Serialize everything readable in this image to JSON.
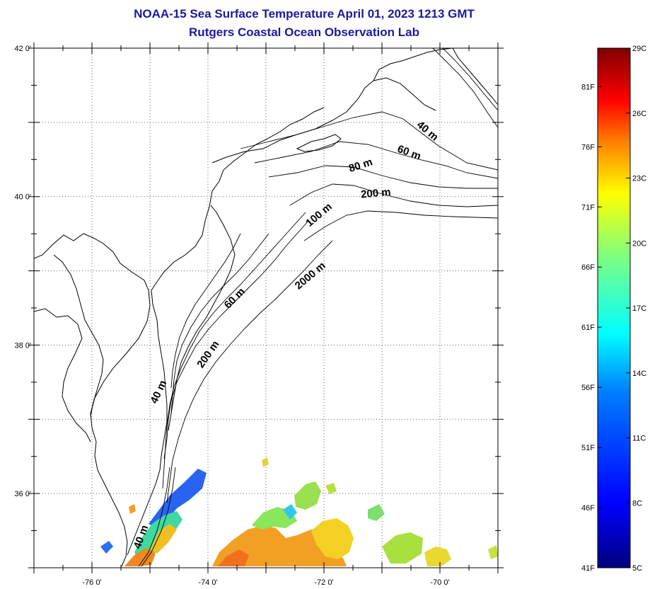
{
  "title": "NOAA-15 Sea Surface Temperature April 01, 2023 1213 GMT",
  "subtitle": "Rutgers Coastal Ocean Observation Lab",
  "map": {
    "lon_range": [
      -77.0,
      -69.0
    ],
    "lat_range": [
      35.0,
      42.0
    ],
    "lat_ticks": [
      {
        "value": 42,
        "label": "42 0'"
      },
      {
        "value": 40,
        "label": "40 0'"
      },
      {
        "value": 38,
        "label": "38 0'"
      },
      {
        "value": 36,
        "label": "36 0'"
      }
    ],
    "lon_ticks": [
      {
        "value": -76,
        "label": "-76 0'"
      },
      {
        "value": -74,
        "label": "-74 0'"
      },
      {
        "value": -72,
        "label": "-72 0'"
      },
      {
        "value": -70,
        "label": "-70 0'"
      }
    ],
    "depth_labels": [
      {
        "text": "40 m",
        "lon": -70.25,
        "lat": 40.85,
        "rot": 40
      },
      {
        "text": "60 m",
        "lon": -70.55,
        "lat": 40.55,
        "rot": 20
      },
      {
        "text": "80 m",
        "lon": -71.35,
        "lat": 40.38,
        "rot": -18
      },
      {
        "text": "200 m",
        "lon": -71.1,
        "lat": 40.0,
        "rot": -5
      },
      {
        "text": "100 m",
        "lon": -72.05,
        "lat": 39.72,
        "rot": -40
      },
      {
        "text": "2000 m",
        "lon": -72.2,
        "lat": 38.9,
        "rot": -40
      },
      {
        "text": "60 m",
        "lon": -73.5,
        "lat": 38.6,
        "rot": -45
      },
      {
        "text": "200 m",
        "lon": -73.95,
        "lat": 37.85,
        "rot": -55
      },
      {
        "text": "40 m",
        "lon": -74.8,
        "lat": 37.35,
        "rot": -65
      },
      {
        "text": "40 m",
        "lon": -75.1,
        "lat": 35.4,
        "rot": -70
      }
    ]
  },
  "colorbar": {
    "f_labels": [
      {
        "value": 81,
        "label": "81F"
      },
      {
        "value": 76,
        "label": "76F"
      },
      {
        "value": 71,
        "label": "71F"
      },
      {
        "value": 66,
        "label": "66F"
      },
      {
        "value": 61,
        "label": "61F"
      },
      {
        "value": 56,
        "label": "56F"
      },
      {
        "value": 51,
        "label": "51F"
      },
      {
        "value": 46,
        "label": "46F"
      },
      {
        "value": 41,
        "label": "41F"
      }
    ],
    "c_labels": [
      {
        "value": 29,
        "label": "29C"
      },
      {
        "value": 26,
        "label": "26C"
      },
      {
        "value": 23,
        "label": "23C"
      },
      {
        "value": 20,
        "label": "20C"
      },
      {
        "value": 17,
        "label": "17C"
      },
      {
        "value": 14,
        "label": "14C"
      },
      {
        "value": 11,
        "label": "11C"
      },
      {
        "value": 8,
        "label": "8C"
      },
      {
        "value": 5,
        "label": "5C"
      }
    ],
    "c_range": [
      5,
      29
    ],
    "colors": [
      "#00007f",
      "#0000ff",
      "#007fff",
      "#00ffff",
      "#7fff7f",
      "#ffff00",
      "#ff7f00",
      "#ff0000",
      "#7f0000"
    ]
  }
}
